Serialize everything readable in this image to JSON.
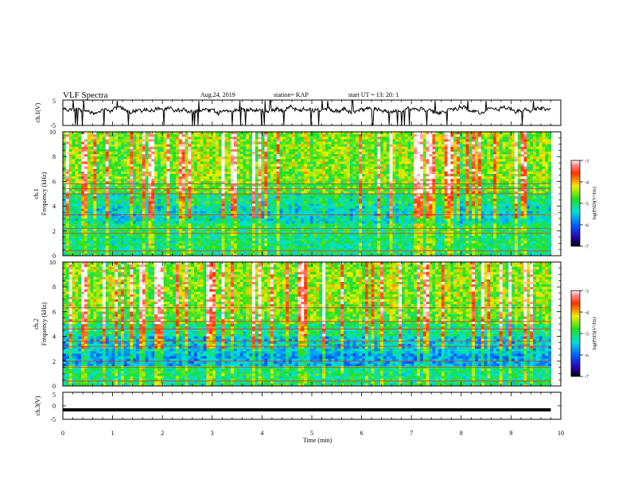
{
  "header": {
    "title": "VLF Spectra",
    "date": "Aug.24, 2019",
    "station": "station= KAP",
    "start": "start  UT  =   13: 20: 1"
  },
  "chart_data": [
    {
      "type": "line",
      "panel": "ch1-waveform",
      "ylabel": "ch.1(V)",
      "ylim": [
        -5,
        5
      ],
      "xlim": [
        0,
        10
      ],
      "yticks": [
        "5",
        "-5"
      ],
      "series": [
        {
          "note": "noisy waveform",
          "x_end": 9.8,
          "y_center": 1.0,
          "amplitude": 1.2
        }
      ]
    },
    {
      "type": "heatmap",
      "panel": "ch1-spectrogram",
      "ylabel_line1": "ch.1",
      "ylabel_line2": "Frequency  (kHz)",
      "ylim": [
        0,
        10
      ],
      "xlim": [
        0,
        10
      ],
      "yticks": [
        "0",
        "2",
        "4",
        "6",
        "8",
        "10"
      ],
      "colorbar": {
        "range": [
          -7,
          -3
        ],
        "ticks": [
          "-3",
          "-4",
          "-5",
          "-6",
          "-7"
        ],
        "label": "log(PSD)(V²/Hz)"
      }
    },
    {
      "type": "heatmap",
      "panel": "ch2-spectrogram",
      "ylabel_line1": "ch.2",
      "ylabel_line2": "Frequency  (kHz)",
      "ylim": [
        0,
        10
      ],
      "xlim": [
        0,
        10
      ],
      "yticks": [
        "0",
        "2",
        "4",
        "6",
        "8",
        "10"
      ],
      "colorbar": {
        "range": [
          -7,
          -3
        ],
        "ticks": [
          "-3",
          "-4",
          "-5",
          "-6",
          "-7"
        ],
        "label": "log(PSD)(V²/Hz)"
      }
    },
    {
      "type": "line",
      "panel": "ch3-waveform",
      "ylabel": "ch.3(V)",
      "ylim": [
        -5,
        5
      ],
      "xlim": [
        0,
        10
      ],
      "yticks": [
        "5",
        "0",
        "-5"
      ],
      "series": [
        {
          "note": "flat line",
          "x": [
            0,
            9.8
          ],
          "y": [
            -1.5,
            -1.5
          ]
        }
      ]
    }
  ],
  "xaxis": {
    "label": "Time  (min)",
    "ticks": [
      "0",
      "1",
      "2",
      "3",
      "4",
      "5",
      "6",
      "7",
      "8",
      "9",
      "10"
    ]
  }
}
